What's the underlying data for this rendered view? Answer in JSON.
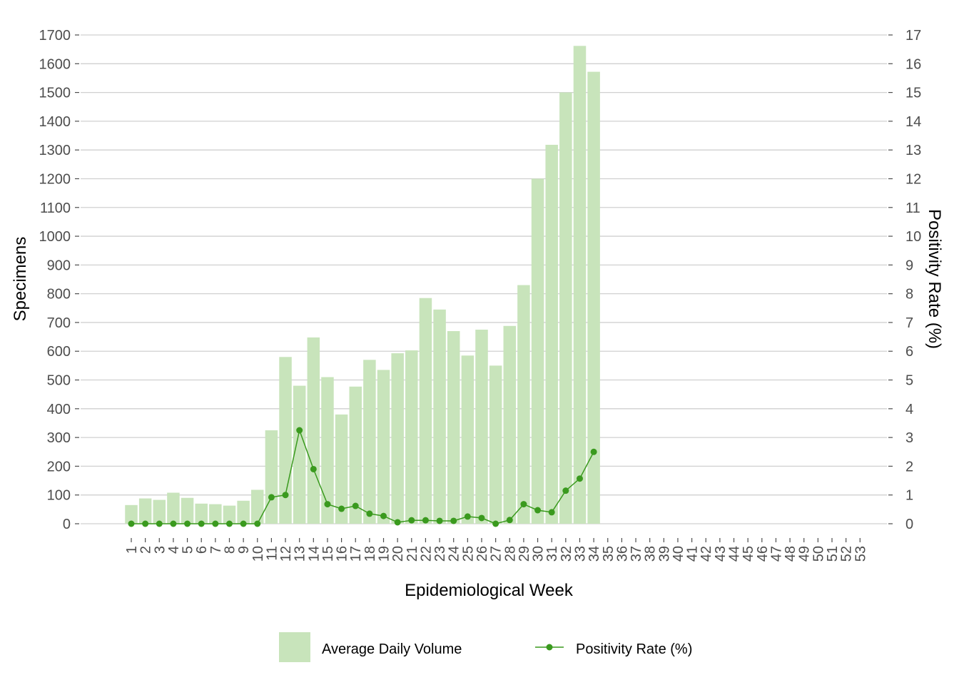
{
  "chart_data": {
    "type": "bar+line",
    "title": "",
    "xlabel": "Epidemiological Week",
    "ylabel_left": "Specimens",
    "ylabel_right": "Positivity Rate (%)",
    "ylim_left": [
      0,
      1700
    ],
    "ylim_right": [
      0,
      17
    ],
    "yticks_left": [
      0,
      100,
      200,
      300,
      400,
      500,
      600,
      700,
      800,
      900,
      1000,
      1100,
      1200,
      1300,
      1400,
      1500,
      1600,
      1700
    ],
    "yticks_right": [
      0,
      1,
      2,
      3,
      4,
      5,
      6,
      7,
      8,
      9,
      10,
      11,
      12,
      13,
      14,
      15,
      16,
      17
    ],
    "grid": "horizontal major",
    "legend_position": "bottom",
    "categories": [
      "1",
      "2",
      "3",
      "4",
      "5",
      "6",
      "7",
      "8",
      "9",
      "10",
      "11",
      "12",
      "13",
      "14",
      "15",
      "16",
      "17",
      "18",
      "19",
      "20",
      "21",
      "22",
      "23",
      "24",
      "25",
      "26",
      "27",
      "28",
      "29",
      "30",
      "31",
      "32",
      "33",
      "34",
      "35",
      "36",
      "37",
      "38",
      "39",
      "40",
      "41",
      "42",
      "43",
      "44",
      "45",
      "46",
      "47",
      "48",
      "49",
      "50",
      "51",
      "52",
      "53"
    ],
    "series": [
      {
        "name": "Average Daily Volume",
        "kind": "bar",
        "axis": "left",
        "color": "#c8e4bb",
        "values": [
          65,
          88,
          83,
          108,
          90,
          70,
          68,
          63,
          80,
          118,
          325,
          580,
          480,
          648,
          510,
          380,
          477,
          570,
          535,
          593,
          603,
          785,
          745,
          670,
          585,
          675,
          550,
          688,
          830,
          1200,
          1318,
          1500,
          1662,
          1572,
          null,
          null,
          null,
          null,
          null,
          null,
          null,
          null,
          null,
          null,
          null,
          null,
          null,
          null,
          null,
          null,
          null,
          null,
          null
        ]
      },
      {
        "name": "Positivity Rate (%)",
        "kind": "line",
        "axis": "right",
        "color": "#3a9a1e",
        "values": [
          0,
          0,
          0,
          0,
          0,
          0,
          0,
          0,
          0,
          0,
          0.92,
          1.0,
          3.25,
          1.9,
          0.68,
          0.52,
          0.62,
          0.35,
          0.27,
          0.05,
          0.12,
          0.12,
          0.1,
          0.1,
          0.25,
          0.2,
          0,
          0.13,
          0.68,
          0.47,
          0.4,
          1.15,
          1.57,
          2.5,
          null,
          null,
          null,
          null,
          null,
          null,
          null,
          null,
          null,
          null,
          null,
          null,
          null,
          null,
          null,
          null,
          null,
          null,
          null
        ]
      }
    ]
  }
}
